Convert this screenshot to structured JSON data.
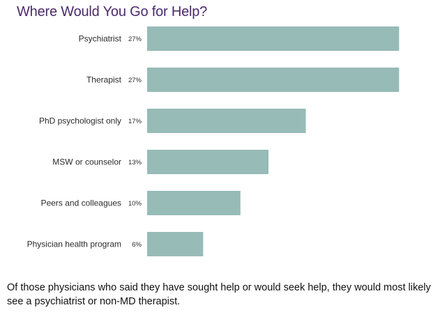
{
  "chart_data": {
    "type": "bar",
    "orientation": "horizontal",
    "title": "Where Would You Go for Help?",
    "categories": [
      "Psychiatrist",
      "Therapist",
      "PhD psychologist only",
      "MSW or counselor",
      "Peers and colleagues",
      "Physician health program"
    ],
    "values": [
      27,
      27,
      17,
      13,
      10,
      6
    ],
    "value_labels": [
      "27%",
      "27%",
      "17%",
      "13%",
      "10%",
      "6%"
    ],
    "value_max_reference": 27.5,
    "grid": false,
    "legend": "none"
  },
  "caption": "Of those physicians who said they have sought help or would seek help, they would most likely see a psychiatrist or non-MD therapist.",
  "colors": {
    "bar": "#97bbb7",
    "title": "#4b2a6b",
    "text": "#2b2b2b",
    "background": "#ffffff"
  }
}
